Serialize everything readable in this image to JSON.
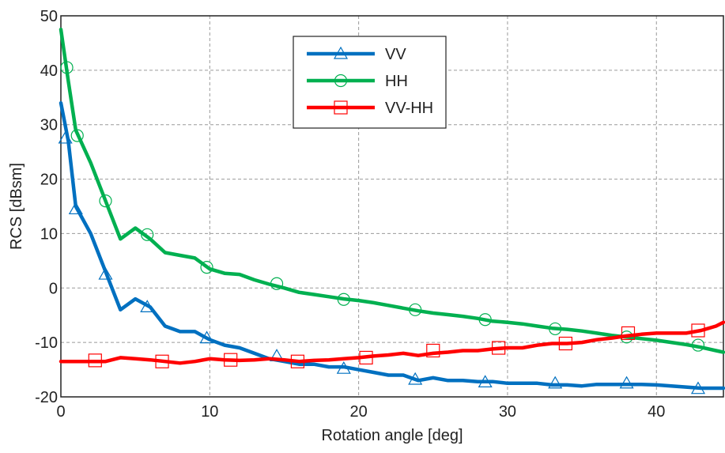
{
  "chart_data": {
    "type": "line",
    "title": "",
    "xlabel": "Rotation angle [deg]",
    "ylabel": "RCS [dBsm]",
    "xlim": [
      0,
      44.5
    ],
    "ylim": [
      -20,
      50
    ],
    "xticks": [
      0,
      10,
      20,
      30,
      40
    ],
    "yticks": [
      -20,
      -10,
      0,
      10,
      20,
      30,
      40,
      50
    ],
    "xtick_labels": [
      "0",
      "10",
      "20",
      "30",
      "40"
    ],
    "ytick_labels": [
      "-20",
      "-10",
      "0",
      "10",
      "20",
      "30",
      "40",
      "50"
    ],
    "grid": true,
    "legend_position": "top-center",
    "series": [
      {
        "name": "VV",
        "color": "#0070C0",
        "marker": "triangle",
        "x": [
          0,
          0.5,
          1,
          2,
          3,
          4,
          5,
          6,
          7,
          8,
          9,
          10,
          11,
          12,
          13,
          14,
          15,
          16,
          17,
          18,
          19,
          20,
          21,
          22,
          23,
          24,
          25,
          26,
          27,
          28,
          29,
          30,
          31,
          32,
          33,
          34,
          35,
          36,
          37,
          38,
          39,
          40,
          41,
          42,
          43,
          44,
          44.5
        ],
        "values": [
          34,
          27,
          15,
          10,
          3,
          -4,
          -2,
          -3.5,
          -7,
          -8,
          -8,
          -9.5,
          -10.5,
          -11,
          -12,
          -13,
          -13.5,
          -14,
          -14,
          -14.5,
          -14.5,
          -15,
          -15.5,
          -16,
          -16,
          -17,
          -16.5,
          -17,
          -17,
          -17.2,
          -17.2,
          -17.5,
          -17.5,
          -17.5,
          -17.8,
          -17.8,
          -18,
          -17.7,
          -17.7,
          -17.7,
          -17.7,
          -17.8,
          -18,
          -18.2,
          -18.4,
          -18.4,
          -18.4
        ],
        "marker_x": [
          0.3,
          1,
          3,
          5.8,
          9.8,
          14.5,
          19,
          23.8,
          28.5,
          33.2,
          38,
          42.8
        ],
        "marker_y": [
          27.5,
          14.5,
          2.5,
          -3.5,
          -9.2,
          -12.5,
          -14.8,
          -16.8,
          -17.3,
          -17.5,
          -17.5,
          -18.5
        ]
      },
      {
        "name": "HH",
        "color": "#00B050",
        "marker": "circle",
        "x": [
          0,
          0.5,
          1,
          2,
          3,
          4,
          5,
          6,
          7,
          8,
          9,
          10,
          11,
          12,
          13,
          14,
          15,
          16,
          17,
          18,
          19,
          20,
          21,
          22,
          23,
          24,
          25,
          26,
          27,
          28,
          29,
          30,
          31,
          32,
          33,
          34,
          35,
          36,
          37,
          38,
          39,
          40,
          41,
          42,
          43,
          44,
          44.5
        ],
        "values": [
          47.5,
          38,
          29,
          23,
          16,
          9,
          11,
          9,
          6.5,
          6,
          5.5,
          3.5,
          2.7,
          2.5,
          1.5,
          0.7,
          0,
          -0.8,
          -1.2,
          -1.6,
          -2,
          -2.3,
          -2.7,
          -3.2,
          -3.7,
          -4.2,
          -4.6,
          -4.9,
          -5.2,
          -5.6,
          -6.1,
          -6.3,
          -6.6,
          -7,
          -7.4,
          -7.6,
          -7.9,
          -8.3,
          -8.7,
          -9,
          -9.3,
          -9.6,
          -10,
          -10.4,
          -10.9,
          -11.5,
          -11.8
        ],
        "marker_x": [
          0.4,
          1.1,
          3,
          5.8,
          9.8,
          14.5,
          19,
          23.8,
          28.5,
          33.2,
          38,
          42.8
        ],
        "marker_y": [
          40.5,
          28,
          16,
          9.8,
          3.8,
          0.8,
          -2.1,
          -4,
          -5.8,
          -7.5,
          -9,
          -10.5
        ]
      },
      {
        "name": "VV-HH",
        "color": "#FF0000",
        "marker": "square",
        "x": [
          0,
          1,
          2,
          3,
          4,
          5,
          6,
          7,
          8,
          9,
          10,
          11,
          12,
          13,
          14,
          15,
          16,
          17,
          18,
          19,
          20,
          21,
          22,
          23,
          24,
          25,
          26,
          27,
          28,
          29,
          30,
          31,
          32,
          33,
          34,
          35,
          36,
          37,
          38,
          39,
          40,
          41,
          42,
          43,
          44,
          44.5
        ],
        "values": [
          -13.5,
          -13.5,
          -13.5,
          -13.5,
          -12.8,
          -13,
          -13.2,
          -13.5,
          -13.8,
          -13.5,
          -13,
          -13.2,
          -13.3,
          -13.2,
          -13,
          -13.2,
          -13.5,
          -13.3,
          -13.2,
          -13,
          -12.8,
          -12.5,
          -12.3,
          -12,
          -12.4,
          -12,
          -11.8,
          -11.5,
          -11.5,
          -11.2,
          -11,
          -11,
          -10.5,
          -10.2,
          -10.2,
          -10,
          -9.5,
          -9.2,
          -8.8,
          -8.5,
          -8.3,
          -8.3,
          -8.3,
          -7.8,
          -7,
          -6.3
        ],
        "marker_x": [
          2.3,
          6.8,
          11.4,
          15.9,
          20.5,
          25,
          29.4,
          33.9,
          38.1,
          42.8
        ],
        "marker_y": [
          -13.3,
          -13.5,
          -13.2,
          -13.5,
          -12.8,
          -11.5,
          -11,
          -10.2,
          -8.3,
          -7.8
        ]
      }
    ]
  }
}
